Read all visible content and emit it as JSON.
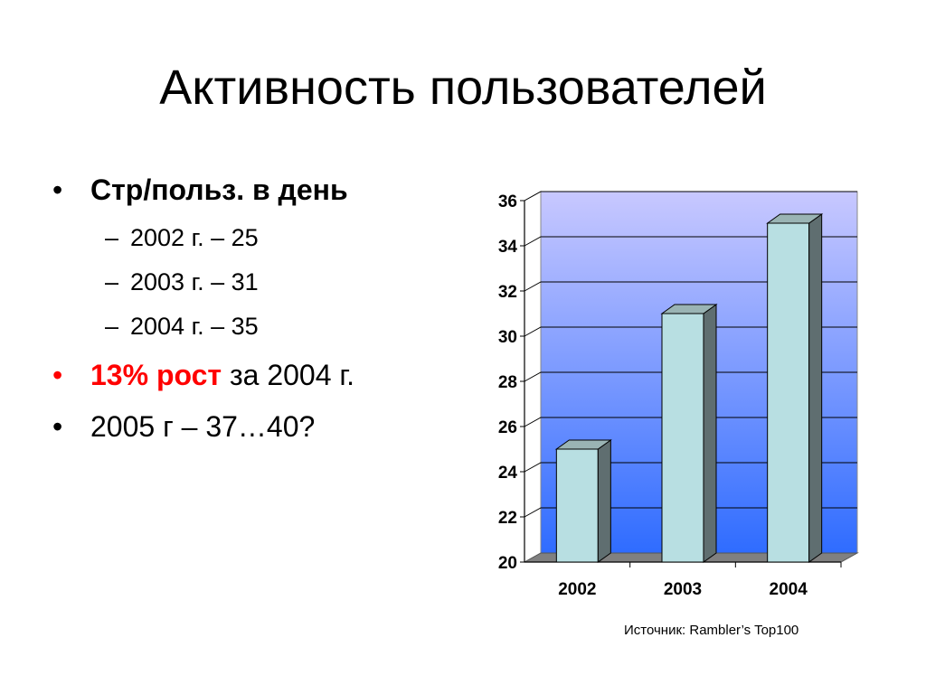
{
  "slide": {
    "title": "Активность пользователей",
    "bullets": [
      {
        "marker": "•",
        "level": 1,
        "parts": [
          {
            "text": "Стр/польз. в день",
            "style": "bold"
          }
        ]
      },
      {
        "marker": "–",
        "level": 2,
        "parts": [
          {
            "text": "2002 г. – 25",
            "style": "normal"
          }
        ]
      },
      {
        "marker": "–",
        "level": 2,
        "parts": [
          {
            "text": "2003 г. – 31",
            "style": "normal"
          }
        ]
      },
      {
        "marker": "–",
        "level": 2,
        "parts": [
          {
            "text": "2004 г. – 35",
            "style": "normal"
          }
        ]
      },
      {
        "marker": "•",
        "level": 1,
        "marker_color": "#ff0000",
        "parts": [
          {
            "text": "13% рост",
            "style": "bold-red"
          },
          {
            "text": " за 2004 г.",
            "style": "normal"
          }
        ]
      },
      {
        "marker": "•",
        "level": 1,
        "parts": [
          {
            "text": "2005 г – 37…40?",
            "style": "normal"
          }
        ]
      }
    ],
    "source": "Источник: Rambler’s Top100"
  },
  "chart_data": {
    "type": "bar",
    "three_d": true,
    "categories": [
      "2002",
      "2003",
      "2004"
    ],
    "values": [
      25,
      31,
      35
    ],
    "title": "",
    "xlabel": "",
    "ylabel": "",
    "ylim": [
      20,
      36
    ],
    "yticks": [
      "20",
      "22",
      "24",
      "26",
      "28",
      "30",
      "32",
      "34",
      "36"
    ],
    "grid": true,
    "legend": "none",
    "colors": {
      "bar_front": "#b8dfe2",
      "bar_top": "#9ab4b4",
      "bar_side": "#5f6e70",
      "wall_top": "#c8c8ff",
      "wall_bottom": "#2f6cff",
      "floor": "#808080",
      "gridline": "#000000"
    }
  }
}
